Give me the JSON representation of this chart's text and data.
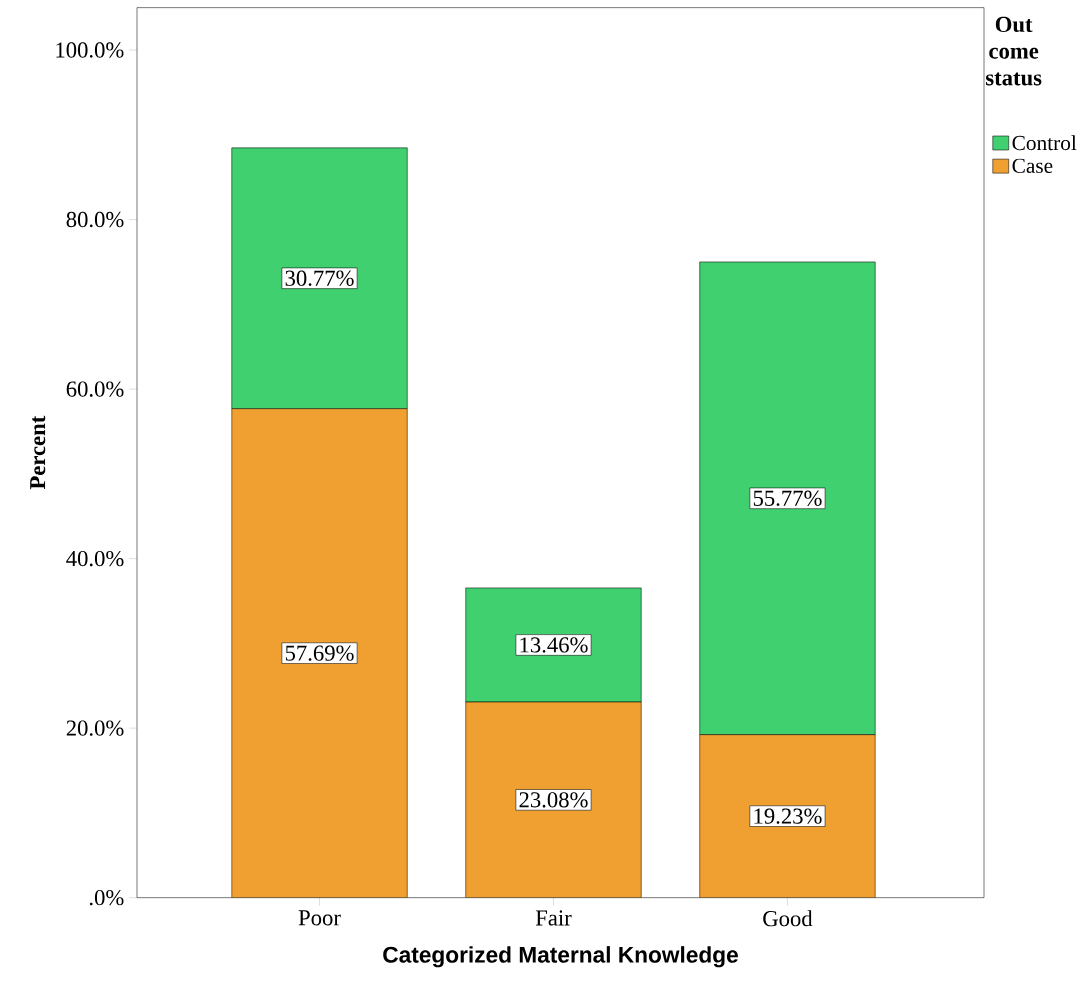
{
  "chart_data": {
    "type": "bar",
    "stacked": true,
    "xlabel": "Categorized Maternal Knowledge",
    "ylabel": "Percent",
    "legend_title": "Out come status",
    "legend": "top right",
    "categories": [
      "Poor",
      "Fair",
      "Good"
    ],
    "series": [
      {
        "name": "Case",
        "color": "#f0a030",
        "values": [
          57.69,
          23.08,
          19.23
        ],
        "value_labels": [
          "57.69%",
          "23.08%",
          "19.23%"
        ]
      },
      {
        "name": "Control",
        "color": "#40d070",
        "values": [
          30.77,
          13.46,
          55.77
        ],
        "value_labels": [
          "30.77%",
          "13.46%",
          "55.77%"
        ]
      }
    ],
    "ylim": [
      0,
      105
    ],
    "yticks": [
      {
        "value": 0,
        "label": ".0%"
      },
      {
        "value": 20,
        "label": "20.0%"
      },
      {
        "value": 40,
        "label": "40.0%"
      },
      {
        "value": 60,
        "label": "60.0%"
      },
      {
        "value": 80,
        "label": "80.0%"
      },
      {
        "value": 100,
        "label": "100.0%"
      }
    ]
  }
}
